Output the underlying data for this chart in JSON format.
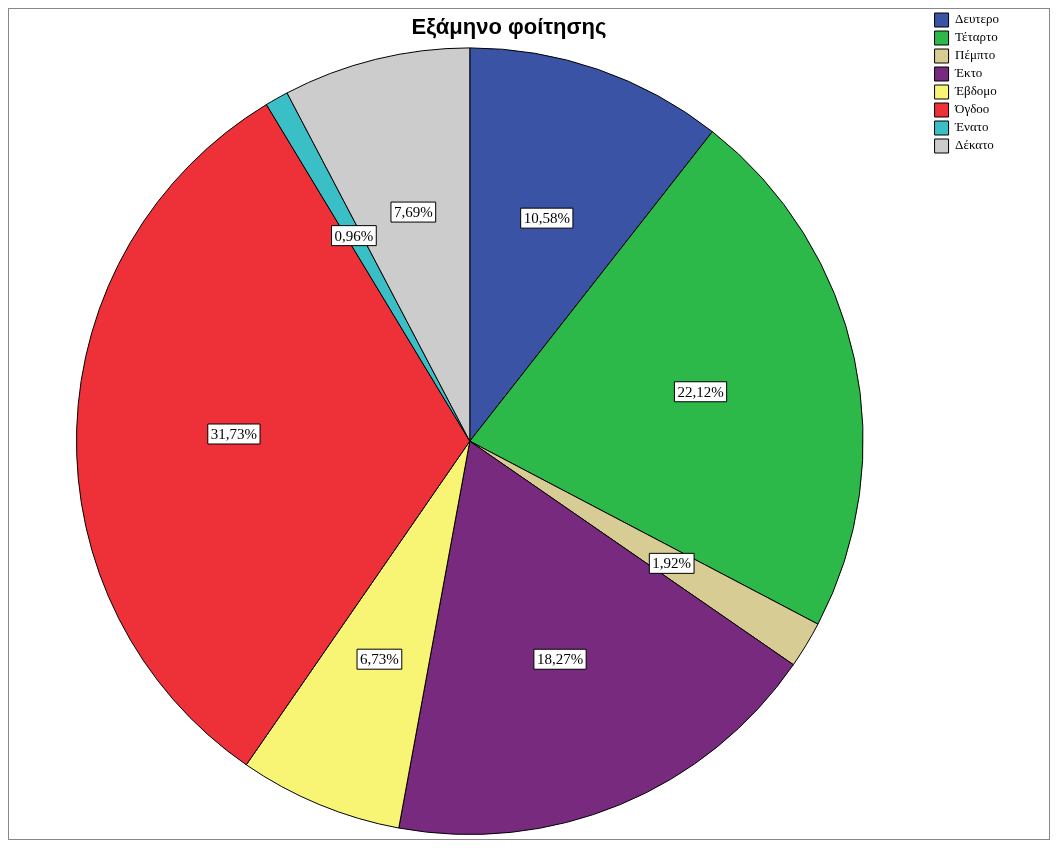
{
  "chart_data": {
    "type": "pie",
    "title": "Εξάμηνο φοίτησης",
    "categories": [
      "Δευτερο",
      "Τέταρτο",
      "Πέμπτο",
      "Έκτο",
      "Έβδομο",
      "Όγδοο",
      "Ένατο",
      "Δέκατο"
    ],
    "values": [
      10.58,
      22.12,
      1.92,
      18.27,
      6.73,
      31.73,
      0.96,
      7.69
    ],
    "colors": [
      "#3a53a4",
      "#2db84a",
      "#d6cc94",
      "#782a7e",
      "#f7f573",
      "#ee3138",
      "#3bbfc6",
      "#cccccc"
    ],
    "value_labels": [
      "10,58%",
      "22,12%",
      "1,92%",
      "18,27%",
      "6,73%",
      "31,73%",
      "0,96%",
      "7,69%"
    ],
    "legend": "top right"
  }
}
